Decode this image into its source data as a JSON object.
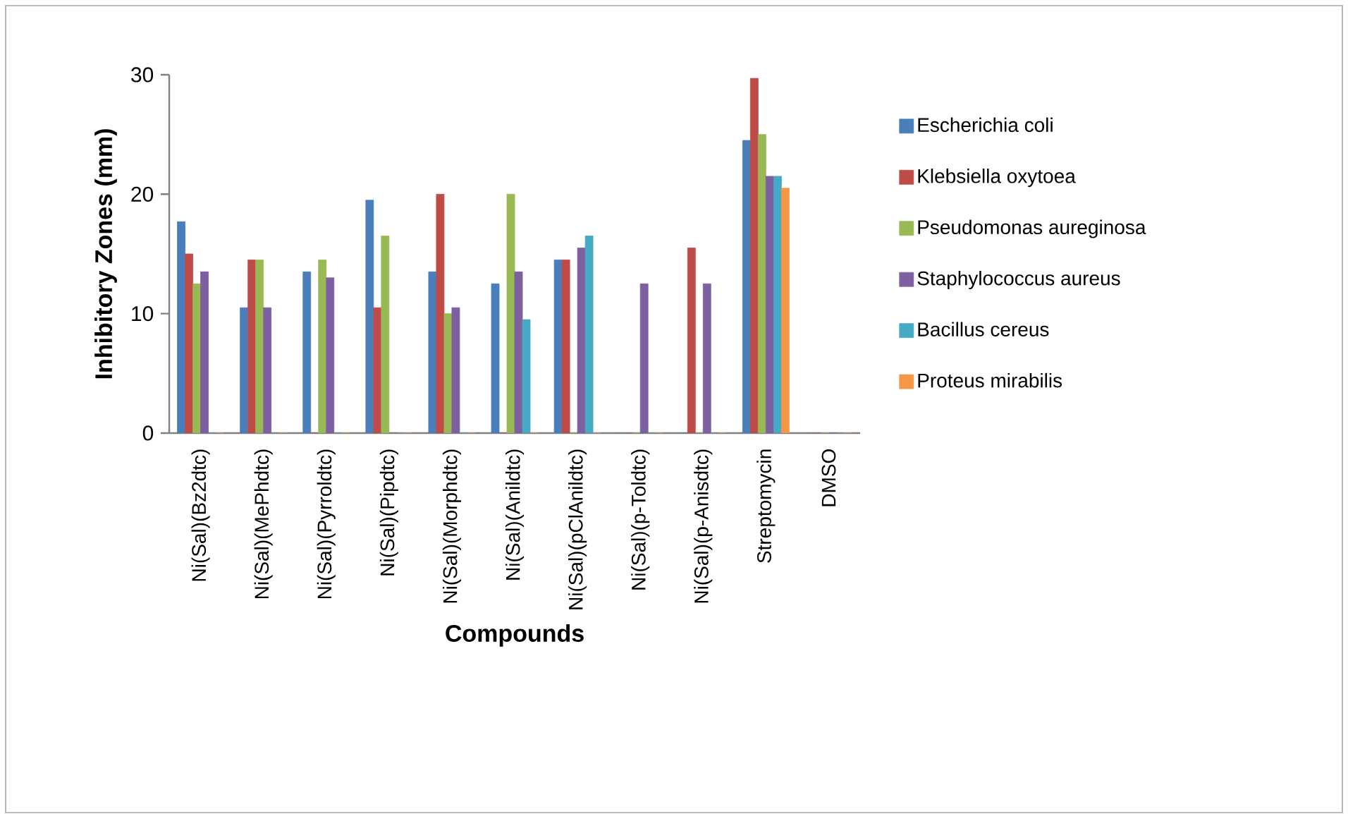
{
  "chart_data": {
    "type": "bar",
    "xlabel": "Compounds",
    "ylabel": "Inhibitory Zones (mm)",
    "categories": [
      "Ni(Sal)(Bz2dtc)",
      "Ni(Sal)(MePhdtc)",
      "Ni(Sal)(Pyrroldtc)",
      "Ni(Sal)(Pipdtc)",
      "Ni(Sal)(Morphdtc)",
      "Ni(Sal)(Anildtc)",
      "Ni(Sal)(pClAnildtc)",
      "Ni(Sal)(p-Toldtc)",
      "Ni(Sal)(p-Anisdtc)",
      "Streptomycin",
      "DMSO"
    ],
    "series": [
      {
        "name": "Escherichia coli",
        "color": "#4a7ebb",
        "values": [
          17.7,
          10.5,
          13.5,
          19.5,
          13.5,
          12.5,
          14.5,
          0,
          0,
          24.5,
          0
        ]
      },
      {
        "name": "Klebsiella oxytoea",
        "color": "#be4b48",
        "values": [
          15,
          14.5,
          0,
          10.5,
          20,
          0,
          14.5,
          0,
          15.5,
          29.7,
          0
        ]
      },
      {
        "name": "Pseudomonas aureginosa",
        "color": "#98b954",
        "values": [
          12.5,
          14.5,
          14.5,
          16.5,
          10,
          20,
          0,
          0,
          0,
          25,
          0
        ]
      },
      {
        "name": "Staphylococcus aureus",
        "color": "#7d60a0",
        "values": [
          13.5,
          10.5,
          13,
          0,
          10.5,
          13.5,
          15.5,
          12.5,
          12.5,
          21.5,
          0
        ]
      },
      {
        "name": "Bacillus cereus",
        "color": "#46aac5",
        "values": [
          0,
          0,
          0,
          0,
          0,
          9.5,
          16.5,
          0,
          0,
          21.5,
          0
        ]
      },
      {
        "name": "Proteus mirabilis",
        "color": "#f79646",
        "values": [
          0,
          0,
          0,
          0,
          0,
          0,
          0,
          0,
          0,
          20.5,
          0
        ]
      }
    ],
    "ylim": [
      0,
      30
    ],
    "yticks": [
      0,
      10,
      20,
      30
    ],
    "grid": false,
    "legend": "right"
  }
}
